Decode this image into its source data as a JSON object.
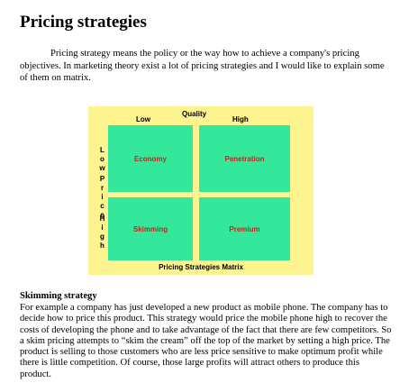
{
  "title": "Pricing strategies",
  "intro": "Pricing strategy means the policy or the way how to achieve a company's pricing objectives. In marketing theory exist a lot of pricing strategies and I would like to explain some of them on matrix.",
  "matrix": {
    "x_axis_title": "Quality",
    "x_labels": [
      "Low",
      "High"
    ],
    "y_axis_title": "Price",
    "y_labels": [
      "Low",
      "High"
    ],
    "cells": [
      [
        "Economy",
        "Penetration"
      ],
      [
        "Skimming",
        "Premium"
      ]
    ],
    "caption": "Pricing Strategies Matrix"
  },
  "section": {
    "heading": "Skimming strategy",
    "body": "For example a company has just developed a new product as mobile phone. The company has to decide how to price this product. This strategy would price the mobile phone high to recover the costs of developing the phone and to take advantage of the fact that there are few competitors. So a skim pricing attempts to “skim the cream” off the top of the market by setting a high price. The product is selling to those customers who are less price sensitive to make optimum profit while there is little competition. Of course, those large profits will attract others to produce this product."
  }
}
